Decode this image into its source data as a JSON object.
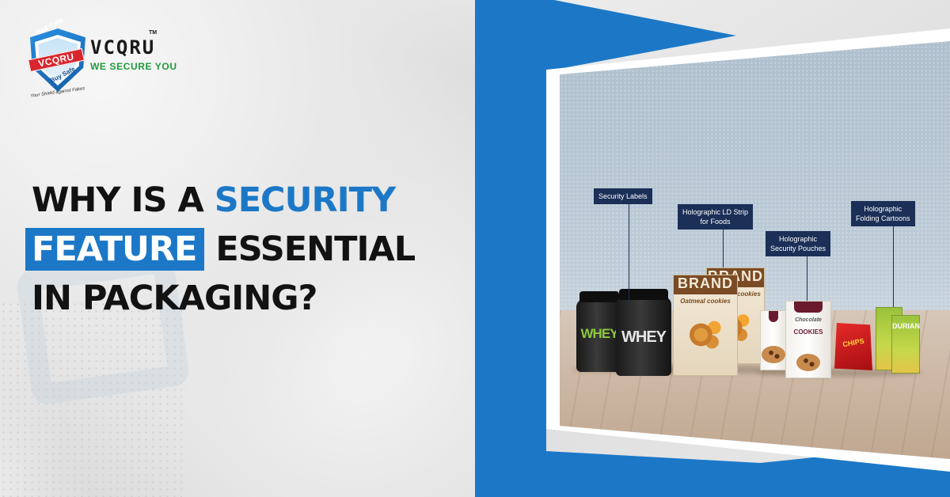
{
  "brand": {
    "shield_top": "Sell Safe",
    "shield_badge": "VCQRU",
    "shield_bottom": "Buy Safe",
    "shield_motto": "Your Shield against Fakes",
    "name": "VCQRU",
    "trademark": "TM",
    "tagline": "WE SECURE YOU"
  },
  "headline": {
    "line1_dark": "WHY IS A ",
    "line1_blue": "SECURITY",
    "line2_boxed": "FEATURE",
    "line2_dark": " ESSENTIAL",
    "line3": "IN PACKAGING?"
  },
  "callouts": {
    "security_labels": "Security Labels",
    "ld_strip_line1": "Holographic LD Strip",
    "ld_strip_line2": "for Foods",
    "pouches_line1": "Holographic",
    "pouches_line2": "Security Pouches",
    "cartons_line1": "Holographic",
    "cartons_line2": "Folding Cartoons"
  },
  "products": {
    "jar_label": "WHEY",
    "bag_brand": "BRAND",
    "bag_sub": "Oatmeal cookies",
    "box_label": "COOKIES",
    "box_script": "Chocolate",
    "chips_label": "CHIPS",
    "carton_label": "DURIAN"
  },
  "colors": {
    "accent_blue": "#1c78c7",
    "callout_navy": "#1b2f57",
    "tagline_green": "#1e9a3b",
    "badge_red": "#d8262e"
  }
}
